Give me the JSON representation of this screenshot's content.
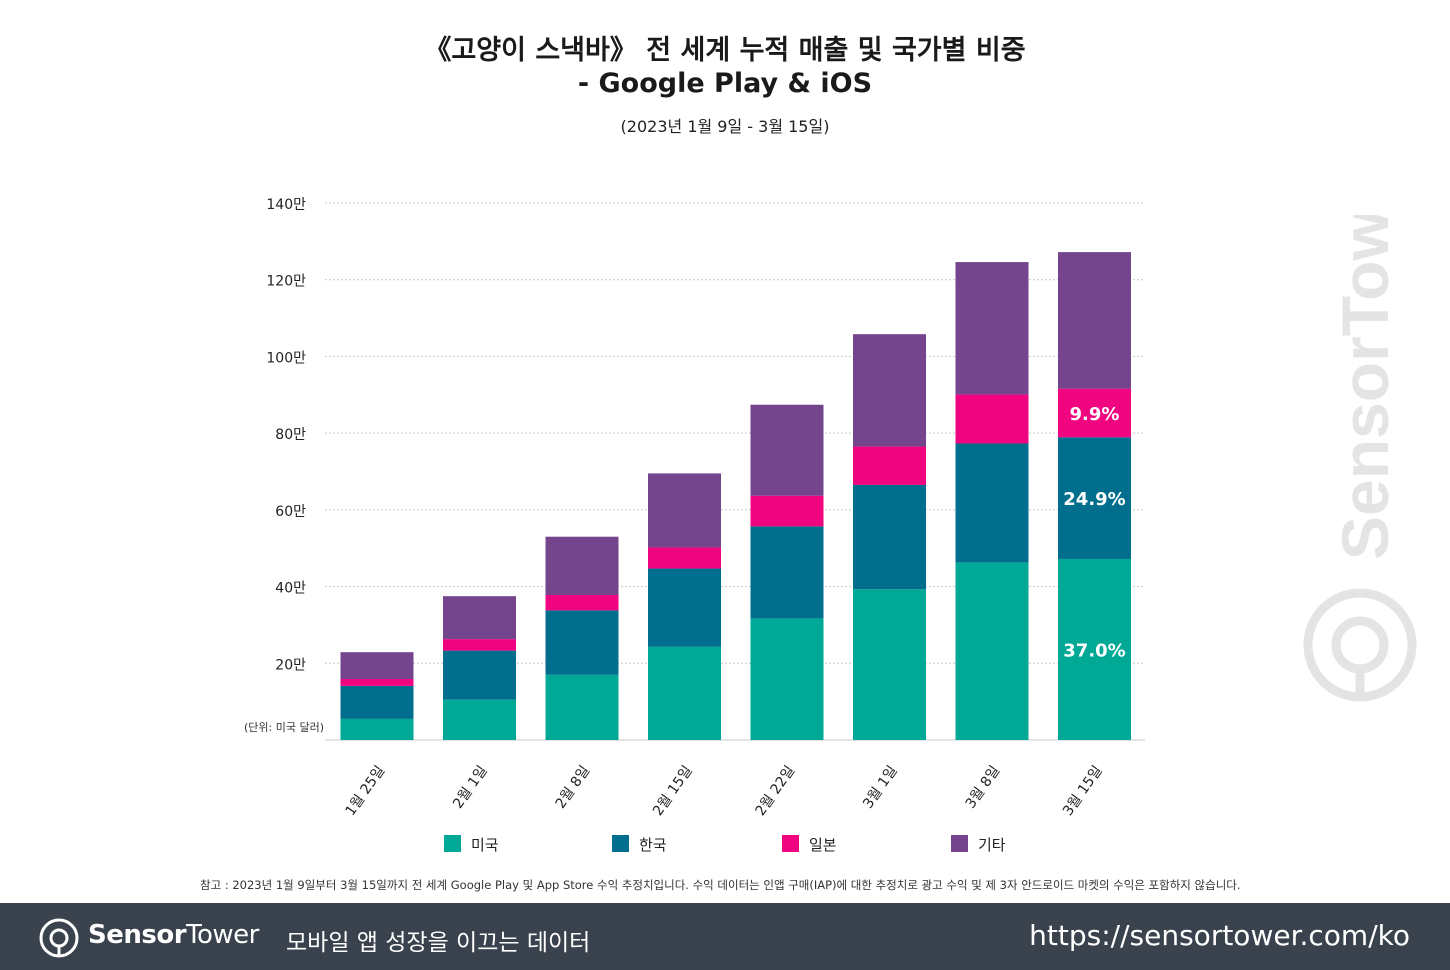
{
  "title_line1": "《고양이 스낵바》 전 세계 누적 매출 및 국가별 비중",
  "title_line2": "- Google Play & iOS",
  "subtitle": "(2023년 1월 9일 - 3월 15일)",
  "unit_label": "(단위: 미국 달러)",
  "note": "참고 : 2023년 1월 9일부터 3월 15일까지 전 세계 Google Play 및 App Store 수익 추정치입니다. 수익 데이터는 인앱 구매(IAP)에 대한 추정치로 광고 수익 및 제 3자 안드로이드 마켓의 수익은 포함하지 않습니다.",
  "watermark": "SensorTower",
  "footer": {
    "brand_bold": "Sensor",
    "brand_light": "Tower",
    "tagline": "모바일 앱 성장을 이끄는 데이터",
    "url": "https://sensortower.com/ko"
  },
  "chart_data": {
    "type": "bar",
    "stacked": true,
    "categories": [
      "1월 25일",
      "2월 1일",
      "2월 8일",
      "2월 15일",
      "2월 22일",
      "3월 1일",
      "3월 8일",
      "3월 15일"
    ],
    "series": [
      {
        "name": "미국",
        "color": "#00a896",
        "values": [
          55000,
          105000,
          170000,
          243000,
          317000,
          393000,
          463000,
          472000
        ]
      },
      {
        "name": "한국",
        "color": "#006e8c",
        "values": [
          86000,
          128000,
          168000,
          204000,
          240000,
          272000,
          310000,
          317000
        ]
      },
      {
        "name": "일본",
        "color": "#f0047f",
        "values": [
          18000,
          30000,
          40000,
          55000,
          80000,
          100000,
          128000,
          127000
        ]
      },
      {
        "name": "기타",
        "color": "#74448d",
        "values": [
          70000,
          112000,
          152000,
          193000,
          237000,
          293000,
          345000,
          356000
        ]
      }
    ],
    "ylim": [
      0,
      1400000
    ],
    "yticks": [
      {
        "value": 200000,
        "label": "20만"
      },
      {
        "value": 400000,
        "label": "40만"
      },
      {
        "value": 600000,
        "label": "60만"
      },
      {
        "value": 800000,
        "label": "80만"
      },
      {
        "value": 1000000,
        "label": "100만"
      },
      {
        "value": 1200000,
        "label": "120만"
      },
      {
        "value": 1400000,
        "label": "140만"
      }
    ],
    "data_labels": [
      {
        "category": "3월 15일",
        "series": "미국",
        "text": "37.0%"
      },
      {
        "category": "3월 15일",
        "series": "한국",
        "text": "24.9%"
      },
      {
        "category": "3월 15일",
        "series": "일본",
        "text": "9.9%"
      }
    ],
    "legend_position": "bottom",
    "grid": true
  }
}
